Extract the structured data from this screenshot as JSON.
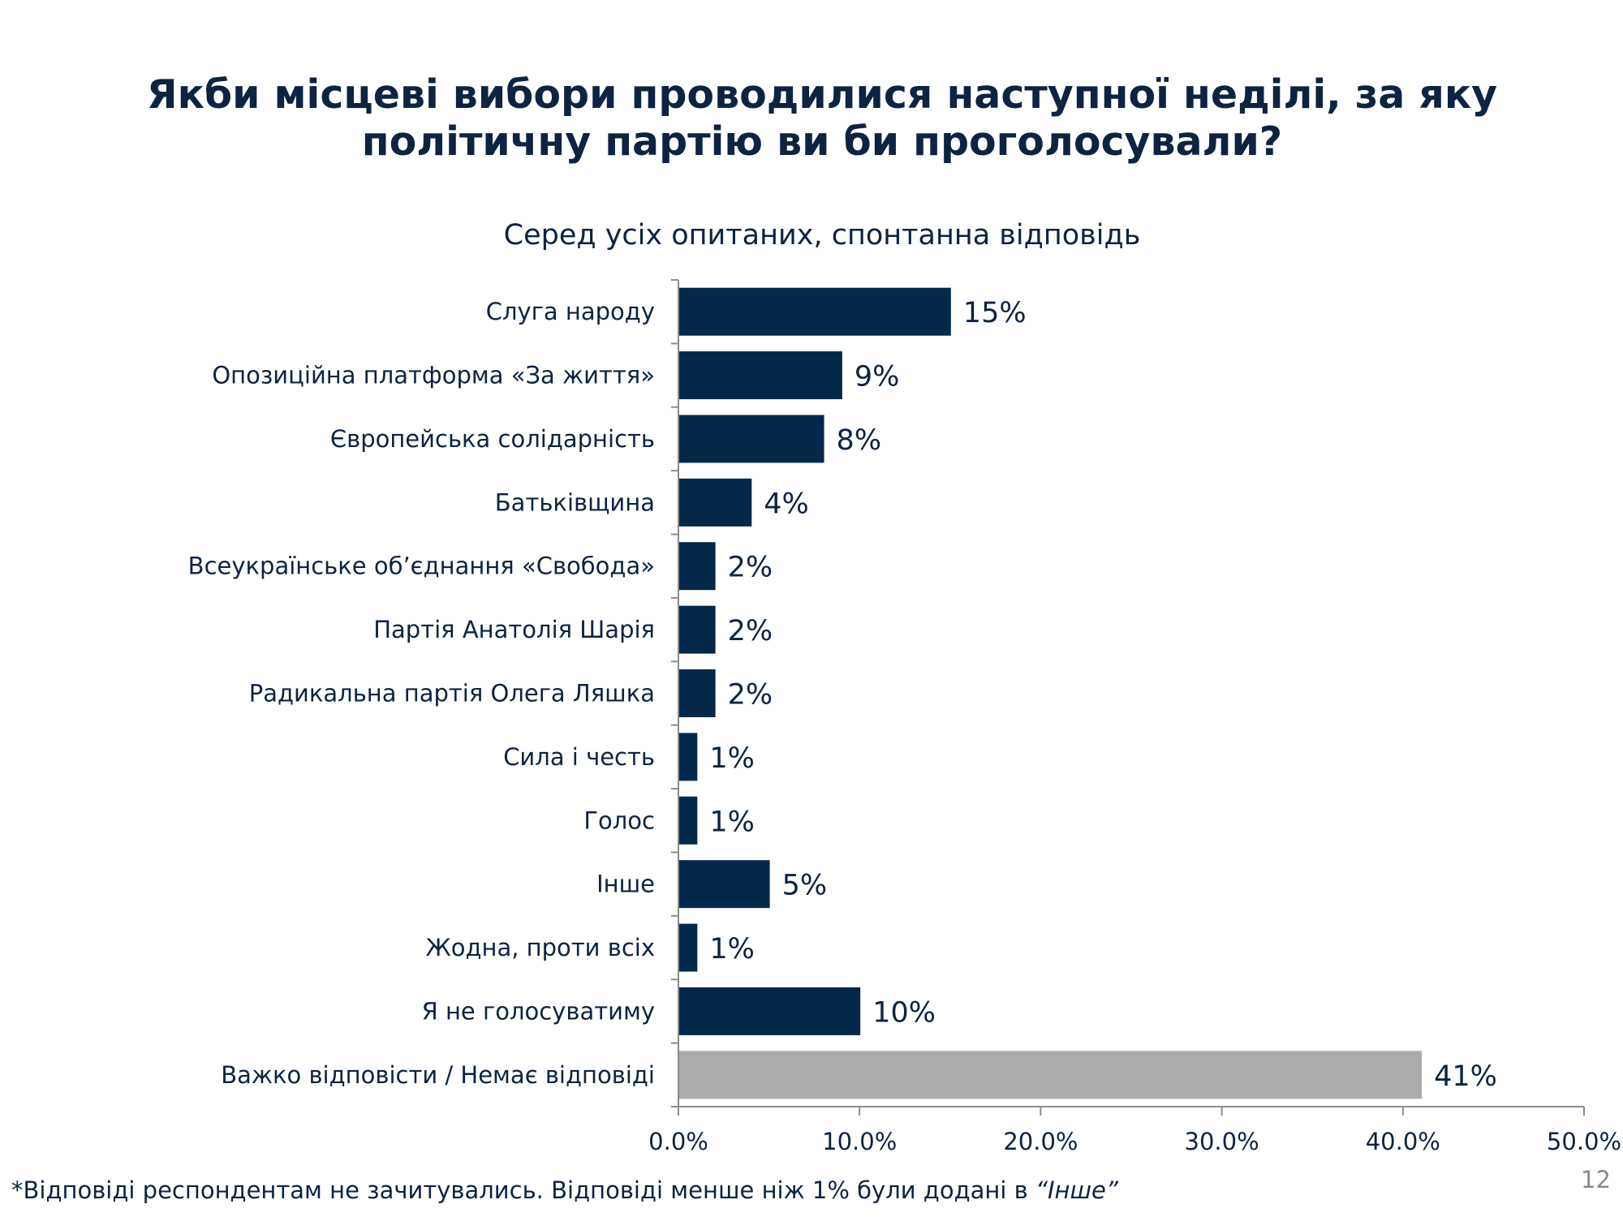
{
  "title_line1": "Якби місцеві вибори проводилися наступної неділі, за яку",
  "title_line2": "політичну партію ви би проголосували?",
  "footnote_prefix": "*Відповіді респондентам не зачитувались. Відповіді менше ніж 1% були додані в ",
  "footnote_italic": "“Інше”",
  "page_number": "12",
  "colors": {
    "primary_bar": "#04284a",
    "highlight_bar": "#ababae",
    "text": "#0d2341"
  },
  "chart_data": {
    "type": "bar",
    "orientation": "horizontal",
    "title": "Серед усіх опитаних, спонтанна відповідь",
    "categories": [
      "Слуга народу",
      "Опозиційна платформа «За життя»",
      "Європейська солідарність",
      "Батьківщина",
      "Всеукраїнське об’єднання «Свобода»",
      "Партія Анатолія Шарія",
      "Радикальна партія Олега Ляшка",
      "Сила і честь",
      "Голос",
      "Інше",
      "Жодна, проти всіх",
      "Я не голосуватиму",
      "Важко відповісти / Немає відповіді"
    ],
    "values": [
      15,
      9,
      8,
      4,
      2,
      2,
      2,
      1,
      1,
      5,
      1,
      10,
      41
    ],
    "data_labels": [
      "15%",
      "9%",
      "8%",
      "4%",
      "2%",
      "2%",
      "2%",
      "1%",
      "1%",
      "5%",
      "1%",
      "10%",
      "41%"
    ],
    "highlighted": [
      "Важко відповісти / Немає відповіді"
    ],
    "xlim": [
      0,
      50
    ],
    "x_ticks": [
      "0.0%",
      "10.0%",
      "20.0%",
      "30.0%",
      "40.0%",
      "50.0%"
    ],
    "grid": false,
    "legend": "none"
  }
}
